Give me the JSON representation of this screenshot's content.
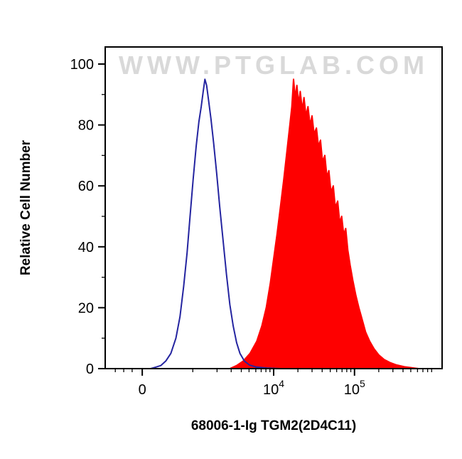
{
  "watermark": "WWW.PTGLAB.COM",
  "chart_data": {
    "type": "area",
    "title": "",
    "xlabel": "68006-1-Ig TGM2(2D4C11)",
    "ylabel": "Relative Cell Number",
    "x_scale": "biexponential-log (flow cytometry fluorescence intensity)",
    "x_units": "point x values are fractions of the plot width along the biexponential axis",
    "ylim": [
      0,
      100
    ],
    "grid": false,
    "legend_position": "none",
    "y_ticks": [
      0,
      20,
      40,
      60,
      80,
      100
    ],
    "y_minor_step": 10,
    "x_ticks": [
      {
        "base": "0",
        "exp": "",
        "frac": 0.11
      },
      {
        "base": "10",
        "exp": "4",
        "frac": 0.5
      },
      {
        "base": "10",
        "exp": "5",
        "frac": 0.74
      }
    ],
    "x_minor_ticks": [
      0.03,
      0.055,
      0.08,
      0.26,
      0.332,
      0.374,
      0.404,
      0.427,
      0.447,
      0.463,
      0.477,
      0.489,
      0.572,
      0.614,
      0.644,
      0.668,
      0.687,
      0.703,
      0.717,
      0.729,
      0.812,
      0.854,
      0.884,
      0.907,
      0.927,
      0.943,
      0.957,
      0.969
    ],
    "series": [
      {
        "name": "red-filled-histogram (TGM2 stained, peak ~2e4, height ~95)",
        "color": "#fe0000",
        "fill": "#fe0000",
        "points": [
          [
            0.37,
            0
          ],
          [
            0.39,
            1
          ],
          [
            0.41,
            2.5
          ],
          [
            0.43,
            5
          ],
          [
            0.45,
            9
          ],
          [
            0.465,
            14
          ],
          [
            0.478,
            20
          ],
          [
            0.49,
            28
          ],
          [
            0.5,
            36
          ],
          [
            0.51,
            44
          ],
          [
            0.52,
            53
          ],
          [
            0.53,
            62
          ],
          [
            0.54,
            72
          ],
          [
            0.548,
            80
          ],
          [
            0.554,
            86
          ],
          [
            0.559,
            95
          ],
          [
            0.564,
            89
          ],
          [
            0.569,
            93
          ],
          [
            0.574,
            87
          ],
          [
            0.579,
            91
          ],
          [
            0.585,
            85
          ],
          [
            0.59,
            89
          ],
          [
            0.596,
            83
          ],
          [
            0.602,
            86
          ],
          [
            0.608,
            80
          ],
          [
            0.614,
            83
          ],
          [
            0.62,
            77
          ],
          [
            0.627,
            79
          ],
          [
            0.633,
            73
          ],
          [
            0.639,
            75
          ],
          [
            0.645,
            68
          ],
          [
            0.652,
            70
          ],
          [
            0.658,
            63
          ],
          [
            0.664,
            65
          ],
          [
            0.67,
            58
          ],
          [
            0.677,
            60
          ],
          [
            0.683,
            53
          ],
          [
            0.69,
            55
          ],
          [
            0.696,
            48
          ],
          [
            0.702,
            50
          ],
          [
            0.708,
            44
          ],
          [
            0.714,
            46
          ],
          [
            0.72,
            39
          ],
          [
            0.727,
            34
          ],
          [
            0.735,
            29
          ],
          [
            0.744,
            24
          ],
          [
            0.753,
            20
          ],
          [
            0.763,
            16
          ],
          [
            0.773,
            12
          ],
          [
            0.785,
            9
          ],
          [
            0.798,
            6.5
          ],
          [
            0.812,
            4.5
          ],
          [
            0.828,
            3
          ],
          [
            0.845,
            2
          ],
          [
            0.865,
            1.2
          ],
          [
            0.888,
            0.6
          ],
          [
            0.91,
            0.3
          ],
          [
            0.93,
            0
          ]
        ]
      },
      {
        "name": "blue-open-histogram (control, peak ~1.5e3, height ~95)",
        "color": "#2424a0",
        "fill": "none",
        "points": [
          [
            0.135,
            0
          ],
          [
            0.15,
            0.5
          ],
          [
            0.165,
            1
          ],
          [
            0.18,
            2.5
          ],
          [
            0.195,
            5
          ],
          [
            0.21,
            10
          ],
          [
            0.222,
            17
          ],
          [
            0.233,
            27
          ],
          [
            0.243,
            38
          ],
          [
            0.252,
            50
          ],
          [
            0.261,
            62
          ],
          [
            0.27,
            73
          ],
          [
            0.278,
            81
          ],
          [
            0.285,
            86
          ],
          [
            0.291,
            91
          ],
          [
            0.296,
            95
          ],
          [
            0.301,
            93
          ],
          [
            0.307,
            88
          ],
          [
            0.314,
            82
          ],
          [
            0.322,
            74
          ],
          [
            0.331,
            64
          ],
          [
            0.34,
            53
          ],
          [
            0.35,
            42
          ],
          [
            0.36,
            31
          ],
          [
            0.37,
            21
          ],
          [
            0.38,
            14
          ],
          [
            0.39,
            8.5
          ],
          [
            0.4,
            5
          ],
          [
            0.413,
            2.5
          ],
          [
            0.428,
            1.2
          ],
          [
            0.45,
            0.5
          ],
          [
            0.48,
            0.2
          ],
          [
            0.52,
            0
          ]
        ]
      }
    ],
    "watermark_color": "#d9d9d9",
    "axis_color": "#000000"
  }
}
